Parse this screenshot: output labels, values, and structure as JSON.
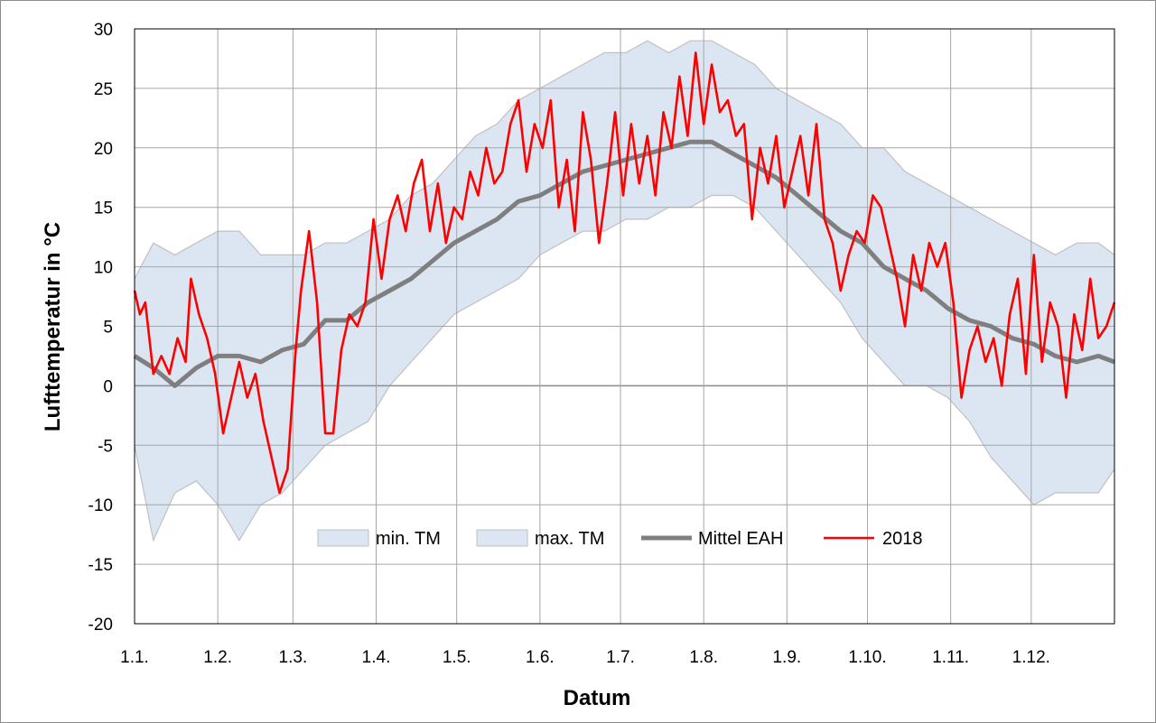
{
  "chart_data": {
    "type": "area",
    "xlabel": "Datum",
    "ylabel": "Lufttemperatur in °C",
    "ylim": [
      -20,
      30
    ],
    "xlim": [
      1,
      366
    ],
    "y_ticks": [
      30,
      25,
      20,
      15,
      10,
      5,
      0,
      -5,
      -10,
      -15,
      -20
    ],
    "x_ticks": [
      {
        "label": "1.1.",
        "day": 1
      },
      {
        "label": "1.2.",
        "day": 32
      },
      {
        "label": "1.3.",
        "day": 60
      },
      {
        "label": "1.4.",
        "day": 91
      },
      {
        "label": "1.5.",
        "day": 121
      },
      {
        "label": "1.6.",
        "day": 152
      },
      {
        "label": "1.7.",
        "day": 182
      },
      {
        "label": "1.8.",
        "day": 213
      },
      {
        "label": "1.9.",
        "day": 244
      },
      {
        "label": "1.10.",
        "day": 274
      },
      {
        "label": "1.11.",
        "day": 305
      },
      {
        "label": "1.12.",
        "day": 335
      }
    ],
    "grid": true,
    "legend_position": "bottom-center",
    "series": [
      {
        "name": "min. TM",
        "color": "#dce6f2",
        "x": [
          1,
          8,
          16,
          24,
          32,
          40,
          48,
          56,
          64,
          72,
          80,
          88,
          96,
          104,
          112,
          120,
          128,
          136,
          144,
          152,
          160,
          168,
          176,
          184,
          192,
          200,
          208,
          216,
          224,
          232,
          240,
          248,
          256,
          264,
          272,
          280,
          288,
          296,
          304,
          312,
          320,
          328,
          336,
          344,
          352,
          360,
          366
        ],
        "y": [
          -5,
          -13,
          -9,
          -8,
          -10,
          -13,
          -10,
          -9,
          -7,
          -5,
          -4,
          -3,
          0,
          2,
          4,
          6,
          7,
          8,
          9,
          11,
          12,
          13,
          13,
          14,
          14,
          15,
          15,
          16,
          16,
          15,
          13,
          11,
          9,
          7,
          4,
          2,
          0,
          0,
          -1,
          -3,
          -6,
          -8,
          -10,
          -9,
          -9,
          -9,
          -7
        ]
      },
      {
        "name": "max. TM",
        "color": "#dce6f2",
        "x": [
          1,
          8,
          16,
          24,
          32,
          40,
          48,
          56,
          64,
          72,
          80,
          88,
          96,
          104,
          112,
          120,
          128,
          136,
          144,
          152,
          160,
          168,
          176,
          184,
          192,
          200,
          208,
          216,
          224,
          232,
          240,
          248,
          256,
          264,
          272,
          280,
          288,
          296,
          304,
          312,
          320,
          328,
          336,
          344,
          352,
          360,
          366
        ],
        "y": [
          9,
          12,
          11,
          12,
          13,
          13,
          11,
          11,
          11,
          12,
          12,
          13,
          14,
          16,
          17,
          19,
          21,
          22,
          24,
          25,
          26,
          27,
          28,
          28,
          29,
          28,
          29,
          29,
          28,
          27,
          25,
          24,
          23,
          22,
          20,
          20,
          18,
          17,
          16,
          15,
          14,
          13,
          12,
          11,
          12,
          12,
          11
        ]
      },
      {
        "name": "Mittel EAH",
        "color": "#7f7f7f",
        "x": [
          1,
          8,
          16,
          24,
          32,
          40,
          48,
          56,
          64,
          72,
          80,
          88,
          96,
          104,
          112,
          120,
          128,
          136,
          144,
          152,
          160,
          168,
          176,
          184,
          192,
          200,
          208,
          216,
          224,
          232,
          240,
          248,
          256,
          264,
          272,
          280,
          288,
          296,
          304,
          312,
          320,
          328,
          336,
          344,
          352,
          360,
          366
        ],
        "y": [
          2.5,
          1.5,
          0,
          1.5,
          2.5,
          2.5,
          2,
          3,
          3.5,
          5.5,
          5.5,
          7,
          8,
          9,
          10.5,
          12,
          13,
          14,
          15.5,
          16,
          17,
          18,
          18.5,
          19,
          19.5,
          20,
          20.5,
          20.5,
          19.5,
          18.5,
          17.5,
          16,
          14.5,
          13,
          12,
          10,
          9,
          8,
          6.5,
          5.5,
          5,
          4,
          3.5,
          2.5,
          2,
          2.5,
          2
        ]
      },
      {
        "name": "2018",
        "color": "#ff0000",
        "x": [
          1,
          3,
          5,
          8,
          11,
          14,
          17,
          20,
          22,
          25,
          28,
          31,
          34,
          37,
          40,
          43,
          46,
          49,
          52,
          55,
          58,
          61,
          63,
          66,
          69,
          72,
          75,
          78,
          81,
          84,
          87,
          90,
          93,
          96,
          99,
          102,
          105,
          108,
          111,
          114,
          117,
          120,
          123,
          126,
          129,
          132,
          135,
          138,
          141,
          144,
          147,
          150,
          153,
          156,
          159,
          162,
          165,
          168,
          171,
          174,
          177,
          180,
          183,
          186,
          189,
          192,
          195,
          198,
          201,
          204,
          207,
          210,
          213,
          216,
          219,
          222,
          225,
          228,
          231,
          234,
          237,
          240,
          243,
          246,
          249,
          252,
          255,
          258,
          261,
          264,
          267,
          270,
          273,
          276,
          279,
          282,
          285,
          288,
          291,
          294,
          297,
          300,
          303,
          306,
          309,
          312,
          315,
          318,
          321,
          324,
          327,
          330,
          333,
          336,
          339,
          342,
          345,
          348,
          351,
          354,
          357,
          360,
          363,
          366
        ],
        "y": [
          8,
          6,
          7,
          1,
          2.5,
          1,
          4,
          2,
          9,
          6,
          4,
          1,
          -4,
          -1,
          2,
          -1,
          1,
          -3,
          -6,
          -9,
          -7,
          3,
          8,
          13,
          7,
          -4,
          -4,
          3,
          6,
          5,
          7,
          14,
          9,
          14,
          16,
          13,
          17,
          19,
          13,
          17,
          12,
          15,
          14,
          18,
          16,
          20,
          17,
          18,
          22,
          24,
          18,
          22,
          20,
          24,
          15,
          19,
          13,
          23,
          19,
          12,
          17,
          23,
          16,
          22,
          17,
          21,
          16,
          23,
          20,
          26,
          21,
          28,
          22,
          27,
          23,
          24,
          21,
          22,
          14,
          20,
          17,
          21,
          15,
          18,
          21,
          16,
          22,
          14,
          12,
          8,
          11,
          13,
          12,
          16,
          15,
          12,
          9,
          5,
          11,
          8,
          12,
          10,
          12,
          7,
          -1,
          3,
          5,
          2,
          4,
          0,
          6,
          9,
          1,
          11,
          2,
          7,
          5,
          -1,
          6,
          3,
          9,
          4,
          5,
          7
        ]
      }
    ]
  }
}
